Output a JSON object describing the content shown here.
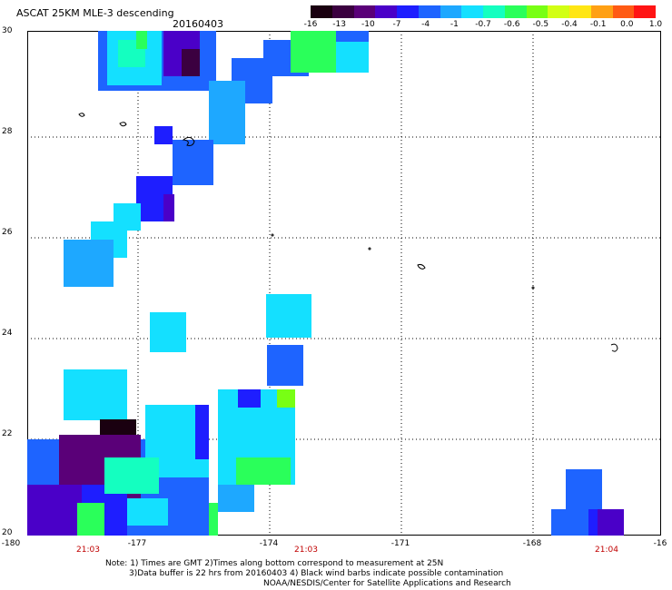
{
  "title": "ASCAT 25KM MLE-3 descending",
  "date": "20160403",
  "colorbar": {
    "labels": [
      "-16",
      "-13",
      "-10",
      "-7",
      "-4",
      "-1",
      "-0.7",
      "-0.6",
      "-0.5",
      "-0.4",
      "-0.1",
      "0.0",
      "1.0"
    ],
    "colors": [
      "#1a0010",
      "#3b0040",
      "#5a0078",
      "#4a00c8",
      "#1e1eff",
      "#1e64ff",
      "#1ea8ff",
      "#14e0ff",
      "#14ffc0",
      "#2aff5a",
      "#78ff14",
      "#d2ff14",
      "#ffe614",
      "#ffa014",
      "#ff5a14",
      "#ff1414"
    ]
  },
  "axes": {
    "y_ticks": [
      "30",
      "28",
      "26",
      "24",
      "22",
      "20"
    ],
    "x_ticks": [
      "-180",
      "-177",
      "-174",
      "-171",
      "-168",
      "-16"
    ],
    "times": [
      "21:03",
      "21:03",
      "21:04"
    ]
  },
  "notes": {
    "line1": "Note: 1) Times are GMT 2)Times along bottom correspond to measurement at 25N",
    "line2": "3)Data buffer is 22 hrs from 20160403 4) Black wind barbs indicate possible contamination",
    "line3": "NOAA/NESDIS/Center for Satellite Applications and Research"
  }
}
